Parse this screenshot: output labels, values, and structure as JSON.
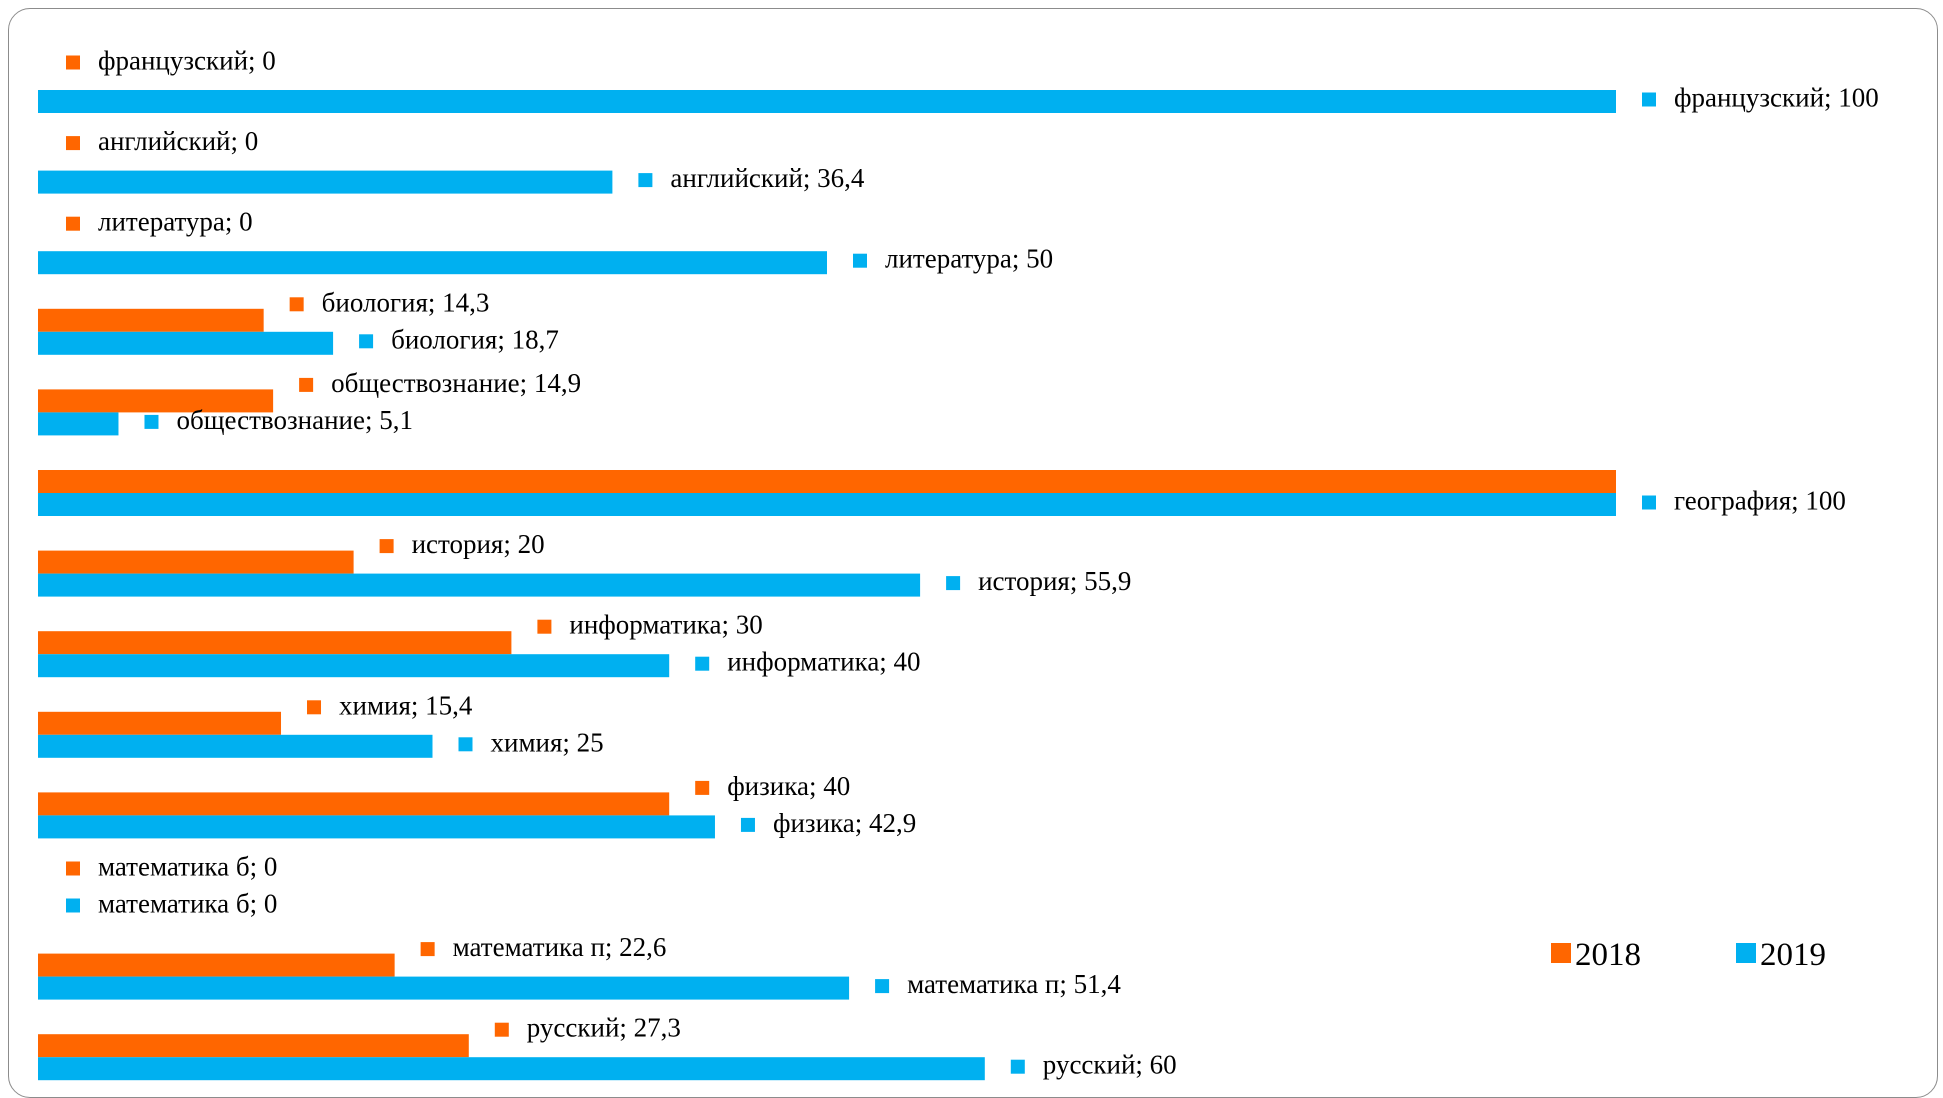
{
  "chart_data": {
    "type": "bar",
    "orientation": "horizontal",
    "categories": [
      "французский",
      "английский",
      "литература",
      "биология",
      "обществознание",
      "география",
      "история",
      "информатика",
      "химия",
      "физика",
      "математика б",
      "математика п",
      "русский"
    ],
    "series": [
      {
        "name": "2018",
        "color": "#ff6600",
        "values": [
          0,
          0,
          0,
          14.3,
          14.9,
          100,
          20,
          30,
          15.4,
          40,
          0,
          22.6,
          27.3
        ]
      },
      {
        "name": "2019",
        "color": "#00b0f0",
        "values": [
          100,
          36.4,
          50,
          18.7,
          5.1,
          100,
          55.9,
          40,
          25,
          42.9,
          0,
          51.4,
          60
        ]
      }
    ],
    "data_labels": {
      "2018": [
        "французский; 0",
        "английский; 0",
        "литература; 0",
        "биология; 14,3",
        "обществознание; 14,9",
        "",
        "история; 20",
        "информатика; 30",
        "химия; 15,4",
        "физика; 40",
        "математика б; 0",
        "математика п; 22,6",
        "русский; 27,3"
      ],
      "2019": [
        "французский; 100",
        "английский; 36,4",
        "литература; 50",
        "биология; 18,7",
        "обществознание; 5,1",
        "география; 100",
        "история; 55,9",
        "информатика; 40",
        "химия; 25",
        "физика; 42,9",
        "математика б; 0",
        "математика п; 51,4",
        "русский; 60"
      ]
    },
    "xlim": [
      0,
      100
    ],
    "grid": false,
    "legend": {
      "position": "bottom-right",
      "entries": [
        "2018",
        "2019"
      ]
    }
  }
}
